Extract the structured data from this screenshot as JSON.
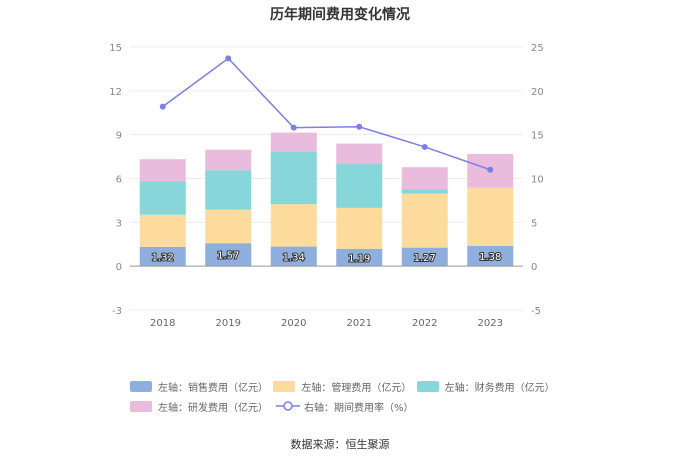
{
  "chart_data": {
    "type": "bar",
    "title": "历年期间费用变化情况",
    "categories": [
      "2018",
      "2019",
      "2020",
      "2021",
      "2022",
      "2023"
    ],
    "series": [
      {
        "name": "左轴：销售费用（亿元）",
        "axis": "left",
        "kind": "bar",
        "color": "#8eaedd",
        "values": [
          1.32,
          1.57,
          1.34,
          1.19,
          1.27,
          1.38
        ],
        "labels": [
          "1.32",
          "1.57",
          "1.34",
          "1.19",
          "1.27",
          "1.38"
        ]
      },
      {
        "name": "左轴：管理费用（亿元）",
        "axis": "left",
        "kind": "bar",
        "color": "#fddb9c",
        "values": [
          2.2,
          2.3,
          2.9,
          2.8,
          3.7,
          4.0
        ]
      },
      {
        "name": "左轴：财务费用（亿元）",
        "axis": "left",
        "kind": "bar",
        "color": "#86d6da",
        "values": [
          2.3,
          2.7,
          3.6,
          3.0,
          0.3,
          0.0
        ]
      },
      {
        "name": "左轴：研发费用（亿元）",
        "axis": "left",
        "kind": "bar",
        "color": "#e9bbdc",
        "values": [
          1.5,
          1.4,
          1.3,
          1.4,
          1.5,
          2.3
        ]
      },
      {
        "name": "右轴：期间费用率（%）",
        "axis": "right",
        "kind": "line",
        "color": "#7b7fe6",
        "values": [
          18.2,
          23.7,
          15.8,
          15.9,
          13.6,
          11.0
        ]
      }
    ],
    "left_axis": {
      "ylim": [
        -3,
        15
      ],
      "ticks": [
        "-3",
        "0",
        "3",
        "6",
        "9",
        "12",
        "15"
      ]
    },
    "right_axis": {
      "ylim": [
        -5,
        25
      ],
      "ticks": [
        "-5",
        "0",
        "5",
        "10",
        "15",
        "20",
        "25"
      ]
    },
    "grid": true,
    "legend_position": "bottom"
  },
  "source_text": "数据来源：恒生聚源"
}
